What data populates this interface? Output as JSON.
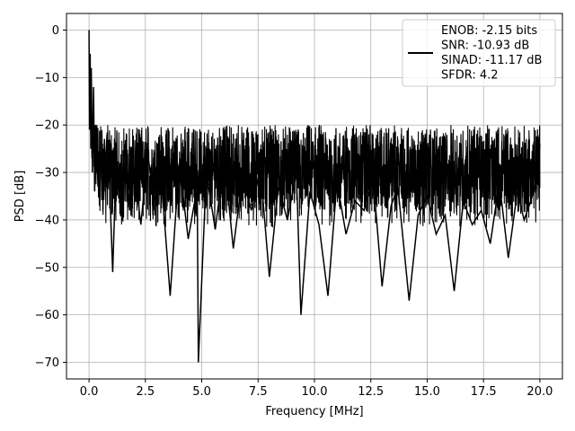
{
  "chart_data": {
    "type": "line",
    "title": "",
    "xlabel": "Frequency [MHz]",
    "ylabel": "PSD [dB]",
    "xlim": [
      -1.0,
      21.0
    ],
    "ylim": [
      -73.5,
      3.5
    ],
    "xticks": [
      0.0,
      2.5,
      5.0,
      7.5,
      10.0,
      12.5,
      15.0,
      17.5,
      20.0
    ],
    "xtick_labels": [
      "0.0",
      "2.5",
      "5.0",
      "7.5",
      "10.0",
      "12.5",
      "15.0",
      "17.5",
      "20.0"
    ],
    "yticks": [
      0,
      -10,
      -20,
      -30,
      -40,
      -50,
      -60,
      -70
    ],
    "ytick_labels": [
      "0",
      "−10",
      "−20",
      "−30",
      "−40",
      "−50",
      "−60",
      "−70"
    ],
    "grid": true,
    "legend_position": "top-right",
    "legend_lines": [
      "ENOB: -2.15 bits",
      "SNR: -10.93 dB",
      "SINAD: -11.17 dB",
      "SFDR: 4.2"
    ],
    "series": [
      {
        "color": "#000000",
        "x": [
          0.0,
          0.02,
          0.05,
          0.08,
          0.1,
          0.15,
          0.2,
          0.25,
          0.3,
          0.4,
          0.5,
          0.65,
          0.8,
          0.9,
          1.05,
          1.2,
          1.4,
          1.6,
          1.8,
          2.0,
          2.3,
          2.6,
          2.9,
          3.2,
          3.6,
          4.0,
          4.4,
          4.8,
          4.85,
          5.2,
          5.6,
          6.0,
          6.4,
          6.8,
          7.2,
          7.6,
          8.0,
          8.4,
          8.8,
          9.2,
          9.4,
          9.8,
          10.2,
          10.6,
          11.0,
          11.4,
          11.8,
          12.2,
          12.6,
          13.0,
          13.4,
          13.7,
          14.2,
          14.6,
          15.0,
          15.4,
          15.8,
          16.2,
          16.6,
          17.0,
          17.4,
          17.8,
          18.2,
          18.6,
          19.0,
          19.3,
          19.6,
          19.9,
          20.0
        ],
        "y": [
          0,
          -21,
          -5,
          -25,
          -8,
          -30,
          -12,
          -34,
          -20,
          -33,
          -26,
          -35,
          -22,
          -31,
          -51,
          -28,
          -35,
          -24,
          -38,
          -29,
          -41,
          -26,
          -36,
          -31,
          -56,
          -28,
          -44,
          -33,
          -70,
          -30,
          -42,
          -27,
          -46,
          -31,
          -38,
          -29,
          -52,
          -33,
          -40,
          -30,
          -60,
          -34,
          -41,
          -56,
          -32,
          -43,
          -36,
          -38,
          -31,
          -54,
          -37,
          -33,
          -57,
          -39,
          -35,
          -43,
          -39,
          -55,
          -36,
          -41,
          -38,
          -45,
          -32,
          -48,
          -34,
          -40,
          -36,
          -31,
          -24
        ]
      }
    ]
  }
}
